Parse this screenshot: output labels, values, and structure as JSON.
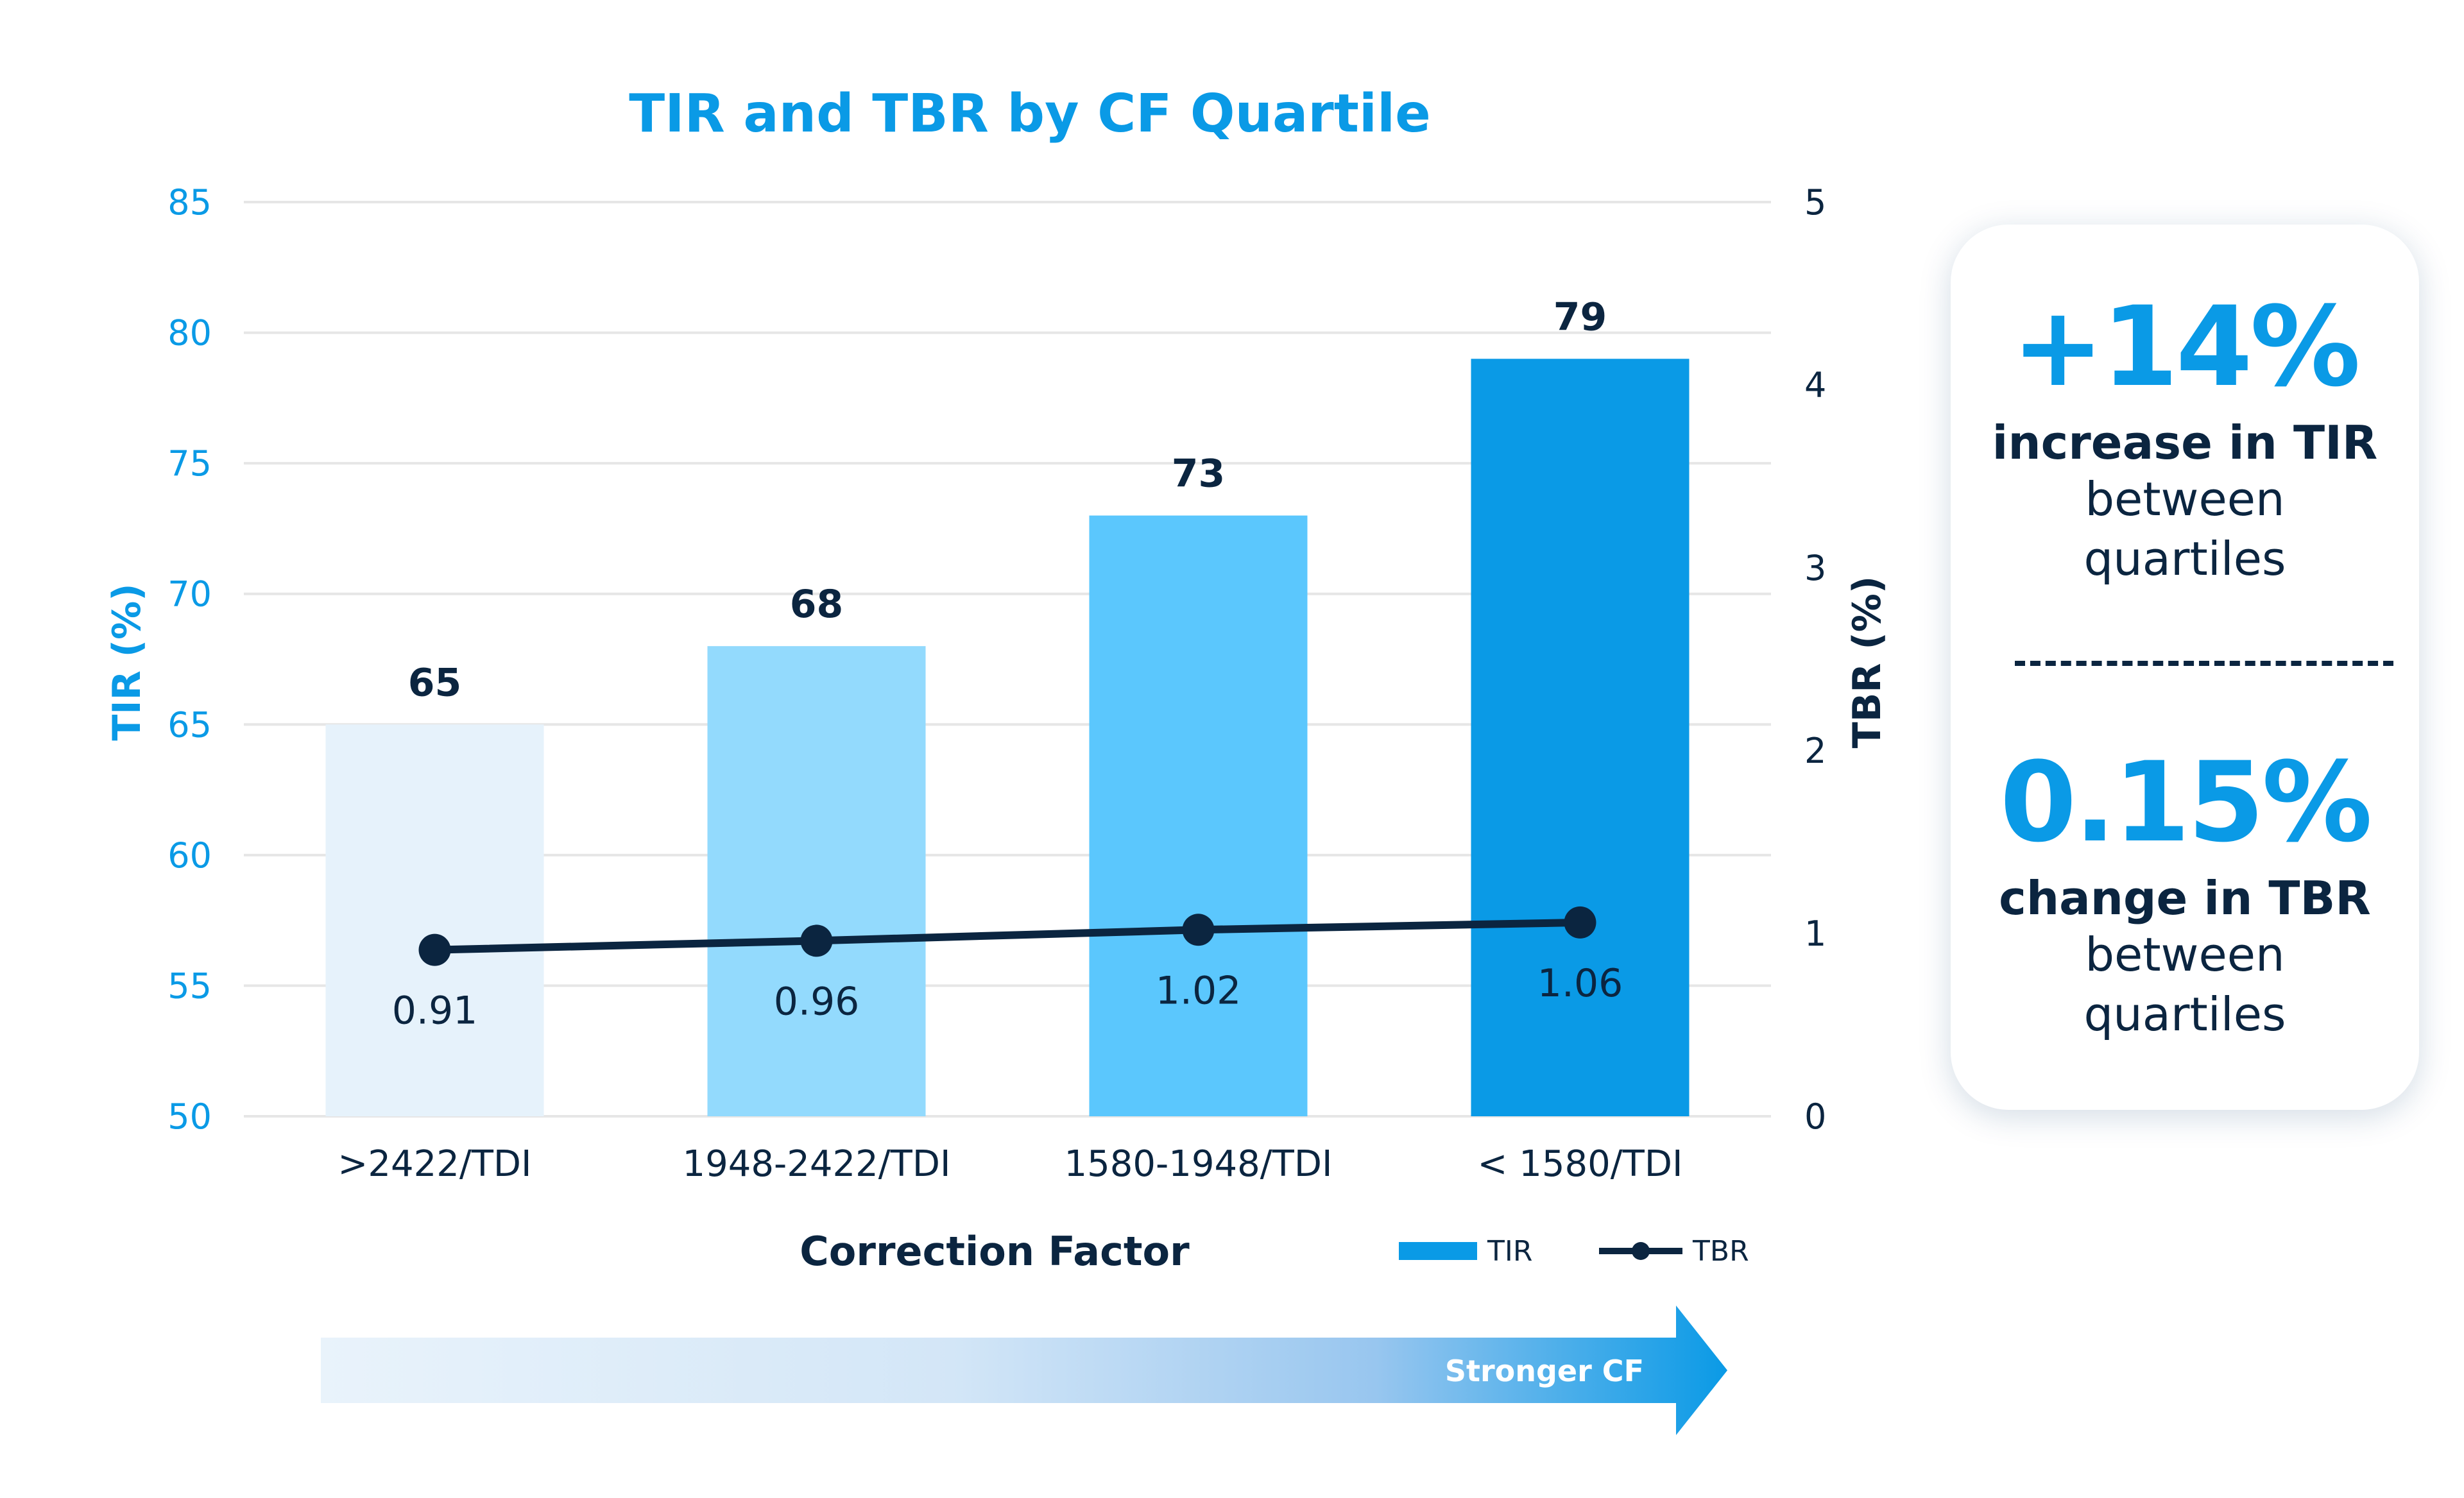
{
  "chart_data": {
    "type": "bar",
    "title": "TIR and TBR by CF Quartile",
    "xlabel": "Correction Factor",
    "ylabel_left": "TIR (%)",
    "ylabel_right": "TBR (%)",
    "categories": [
      ">2422/TDI",
      "1948-2422/TDI",
      "1580-1948/TDI",
      "< 1580/TDI"
    ],
    "ylim_left": [
      50,
      85
    ],
    "yticks_left": [
      "50",
      "55",
      "60",
      "65",
      "70",
      "75",
      "80",
      "85"
    ],
    "ylim_right": [
      0,
      5
    ],
    "yticks_right": [
      "0",
      "1",
      "2",
      "3",
      "4",
      "5"
    ],
    "grid": true,
    "legend_position": "bottom-right",
    "series": [
      {
        "name": "TIR",
        "type": "bar",
        "axis": "left",
        "values": [
          65,
          68,
          73,
          79
        ],
        "value_labels": [
          "65",
          "68",
          "73",
          "79"
        ],
        "colors": [
          "#e6f2fb",
          "#93dafd",
          "#5bc7fd",
          "#0a9ae6"
        ]
      },
      {
        "name": "TBR",
        "type": "line",
        "axis": "right",
        "values": [
          0.91,
          0.96,
          1.02,
          1.06
        ],
        "value_labels": [
          "0.91",
          "0.96",
          "1.02",
          "1.06"
        ],
        "color": "#0b2540"
      }
    ],
    "arrow_label": "Stronger CF"
  },
  "summary": {
    "tir": {
      "value": "+14%",
      "label": "increase in TIR",
      "sub_lines": [
        "between",
        "quartiles"
      ]
    },
    "tbr": {
      "value": "0.15%",
      "label": "change in TBR",
      "sub_lines": [
        "between",
        "quartiles"
      ]
    }
  },
  "colors": {
    "accent": "#0a9ae6",
    "dark": "#0b2540",
    "grid": "#e6e6e6"
  }
}
